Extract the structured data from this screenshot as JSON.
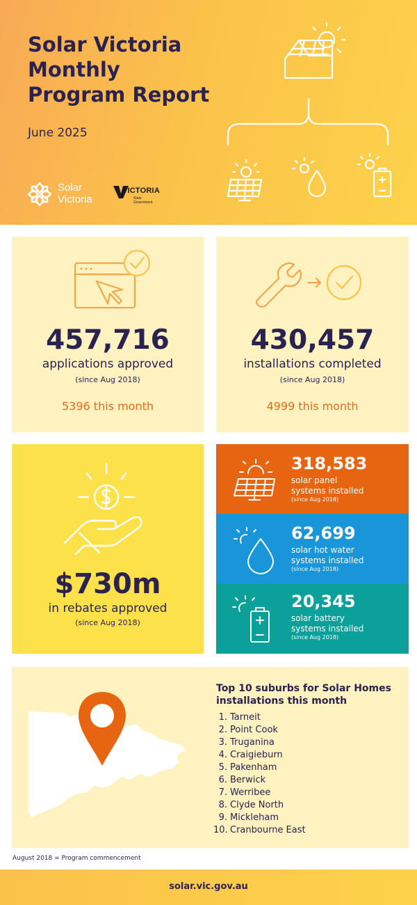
{
  "header": {
    "title_lines": [
      "Solar Victoria",
      "Monthly",
      "Program Report"
    ],
    "subtitle": "June 2025",
    "solar_victoria_logo": [
      "Solar",
      "Victoria"
    ],
    "vic_gov_logo": {
      "name": "VICTORIA",
      "sub": [
        "State",
        "Government"
      ]
    }
  },
  "applications": {
    "value": "457,716",
    "label": "applications approved",
    "since": "(since Aug 2018)",
    "this_month": "5396 this month",
    "icon": "browser-cursor-check-icon"
  },
  "installations": {
    "value": "430,457",
    "label": "installations completed",
    "since": "(since Aug 2018)",
    "this_month": "4999 this month",
    "icon": "wrench-arrow-check-icon"
  },
  "rebates": {
    "value": "$730m",
    "label": "in rebates approved",
    "since": "(since Aug 2018)",
    "icon": "hand-dollar-coin-icon"
  },
  "stats": [
    {
      "value": "318,583",
      "label": [
        "solar panel",
        "systems installed"
      ],
      "since": "(since Aug 2018)",
      "icon": "sun-solar-panel-icon",
      "color": "#e76511"
    },
    {
      "value": "62,699",
      "label": [
        "solar hot water",
        "systems installed"
      ],
      "since": "(since Aug 2018)",
      "icon": "sun-water-drop-icon",
      "color": "#1995da"
    },
    {
      "value": "20,345",
      "label": [
        "solar battery",
        "systems installed"
      ],
      "since": "(since Aug 2018)",
      "icon": "sun-battery-icon",
      "color": "#0ca09a"
    }
  ],
  "suburbs": {
    "title_lines": [
      "Top 10 suburbs for Solar Homes",
      "installations this month"
    ],
    "items": [
      {
        "n": "1.",
        "name": "Tarneit"
      },
      {
        "n": "2.",
        "name": "Point Cook"
      },
      {
        "n": "3.",
        "name": "Truganina"
      },
      {
        "n": "4.",
        "name": "Craigieburn"
      },
      {
        "n": "5.",
        "name": "Pakenham"
      },
      {
        "n": "6.",
        "name": "Berwick"
      },
      {
        "n": "7.",
        "name": "Werribee"
      },
      {
        "n": "8.",
        "name": "Clyde North"
      },
      {
        "n": "9.",
        "name": "Mickleham"
      },
      {
        "n": "10.",
        "name": "Cranbourne East"
      }
    ],
    "map_icon": "victoria-map-pin-icon"
  },
  "footnote": "August 2018 = Program commencement",
  "footer_url": "solar.vic.gov.au",
  "colors": {
    "navy": "#2a2250",
    "orange": "#e76511",
    "blue": "#1995da",
    "teal": "#0ca09a",
    "cream": "#fdf2c0",
    "yellow": "#fde14b"
  }
}
